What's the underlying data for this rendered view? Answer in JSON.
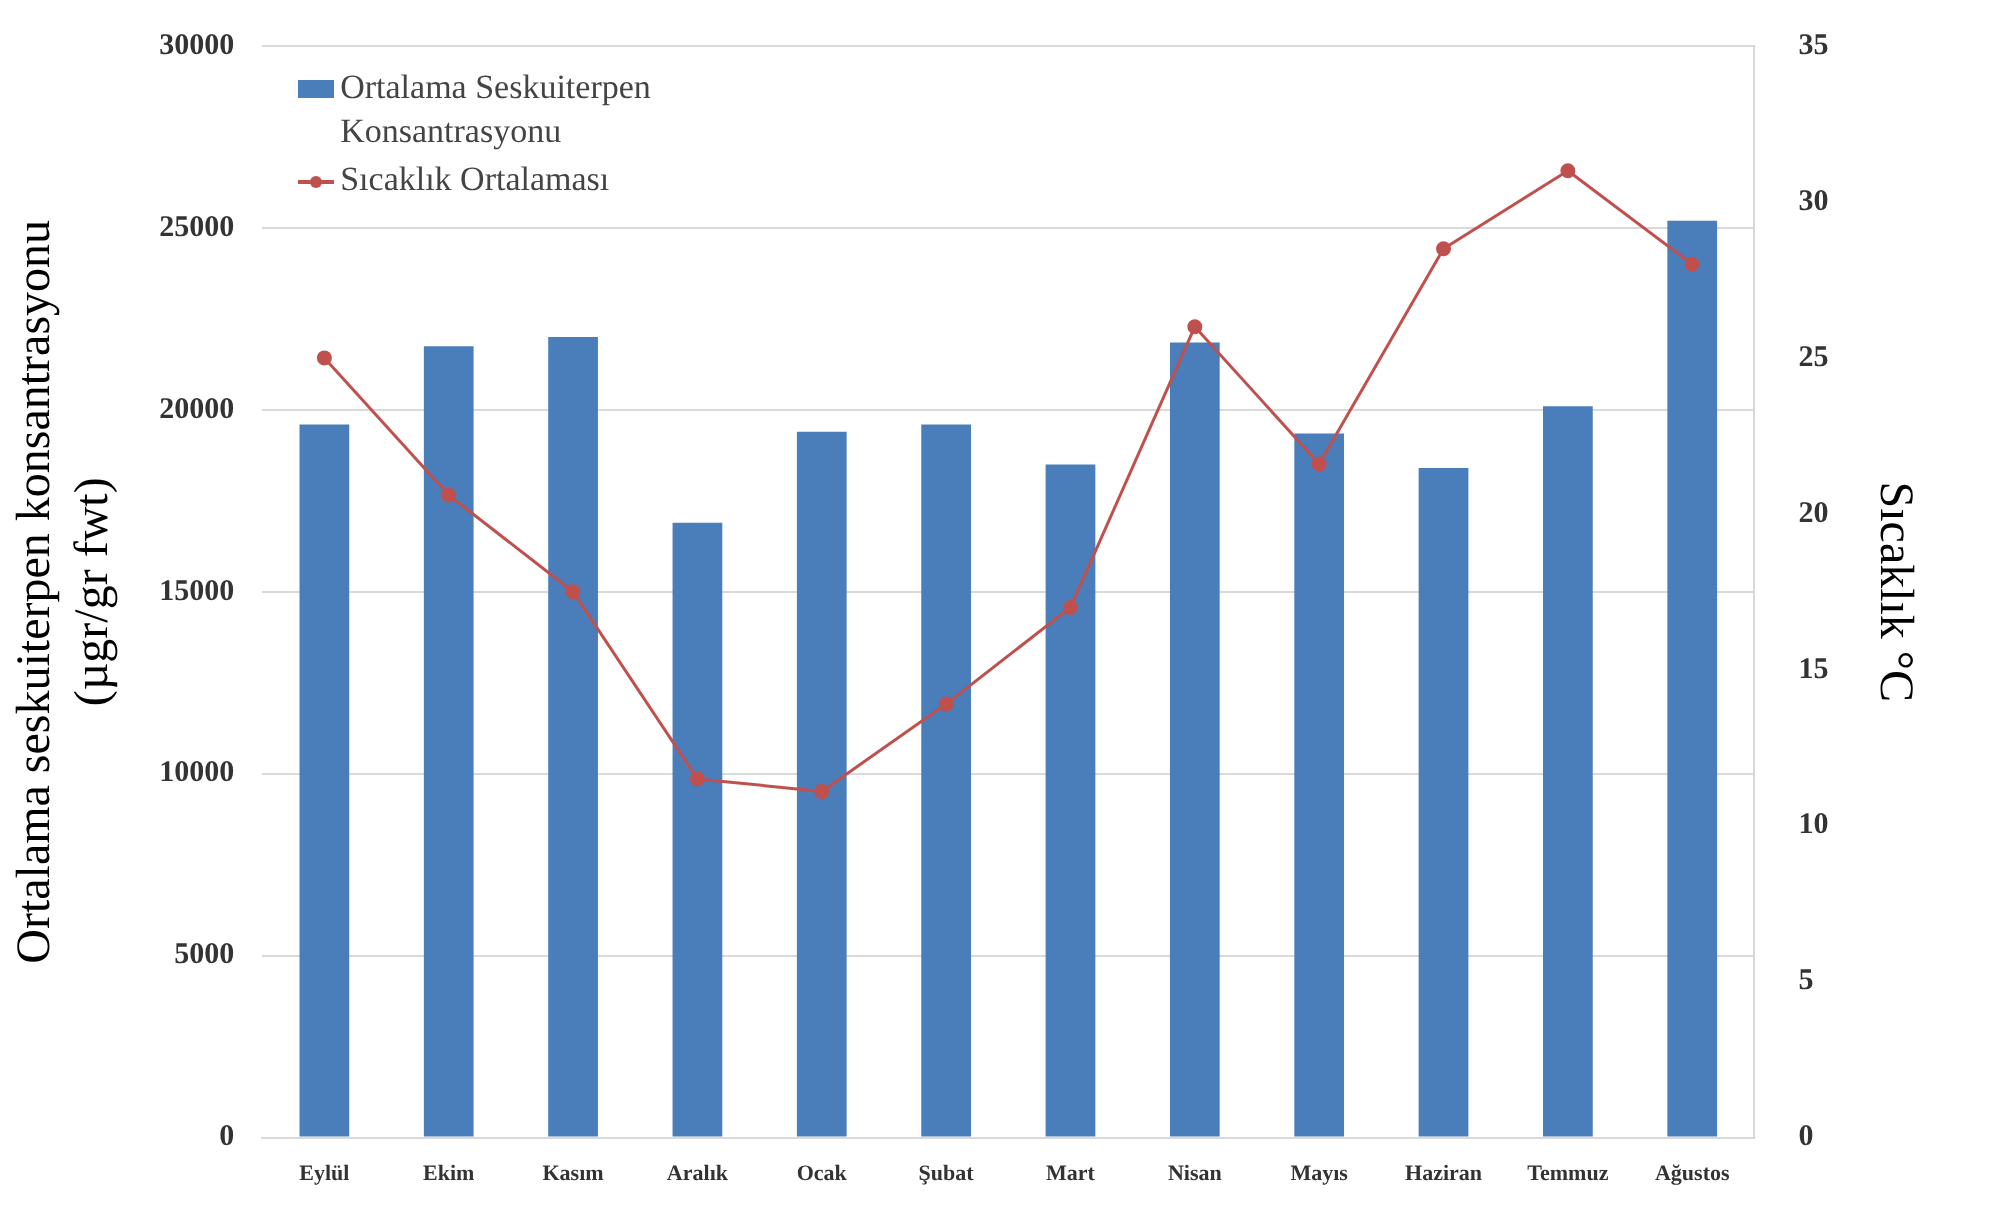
{
  "chart_data": {
    "type": "bar",
    "categories": [
      "Eylül",
      "Ekim",
      "Kasım",
      "Aralık",
      "Ocak",
      "Şubat",
      "Mart",
      "Nisan",
      "Mayıs",
      "Haziran",
      "Temmuz",
      "Ağustos"
    ],
    "series": [
      {
        "name": "Ortalama Seskuiterpen Konsantrasyonu",
        "color": "#4a7ebb",
        "values": [
          19600,
          21750,
          22000,
          16900,
          19400,
          19600,
          18500,
          21850,
          19350,
          18400,
          20100,
          25200
        ]
      },
      {
        "name": "Sıcaklık Ortalaması",
        "type": "line",
        "axis": "y2",
        "color": "#c0504d",
        "marker": "circle",
        "values": [
          25,
          20.6,
          17.5,
          11.5,
          11.1,
          13.9,
          17,
          26,
          21.6,
          28.5,
          31,
          28
        ]
      }
    ],
    "ylabel": "Ortalama seskuiterpen konsantrasyonu (µgr/gr fwt)",
    "y2label": "Sıcaklık °C",
    "ylim": [
      0,
      30000
    ],
    "yticks": [
      0,
      5000,
      10000,
      15000,
      20000,
      25000,
      30000
    ],
    "y2lim": [
      0,
      35
    ],
    "y2ticks": [
      0,
      5,
      10,
      15,
      20,
      25,
      30,
      35
    ],
    "grid": "y",
    "legend": "top left"
  }
}
